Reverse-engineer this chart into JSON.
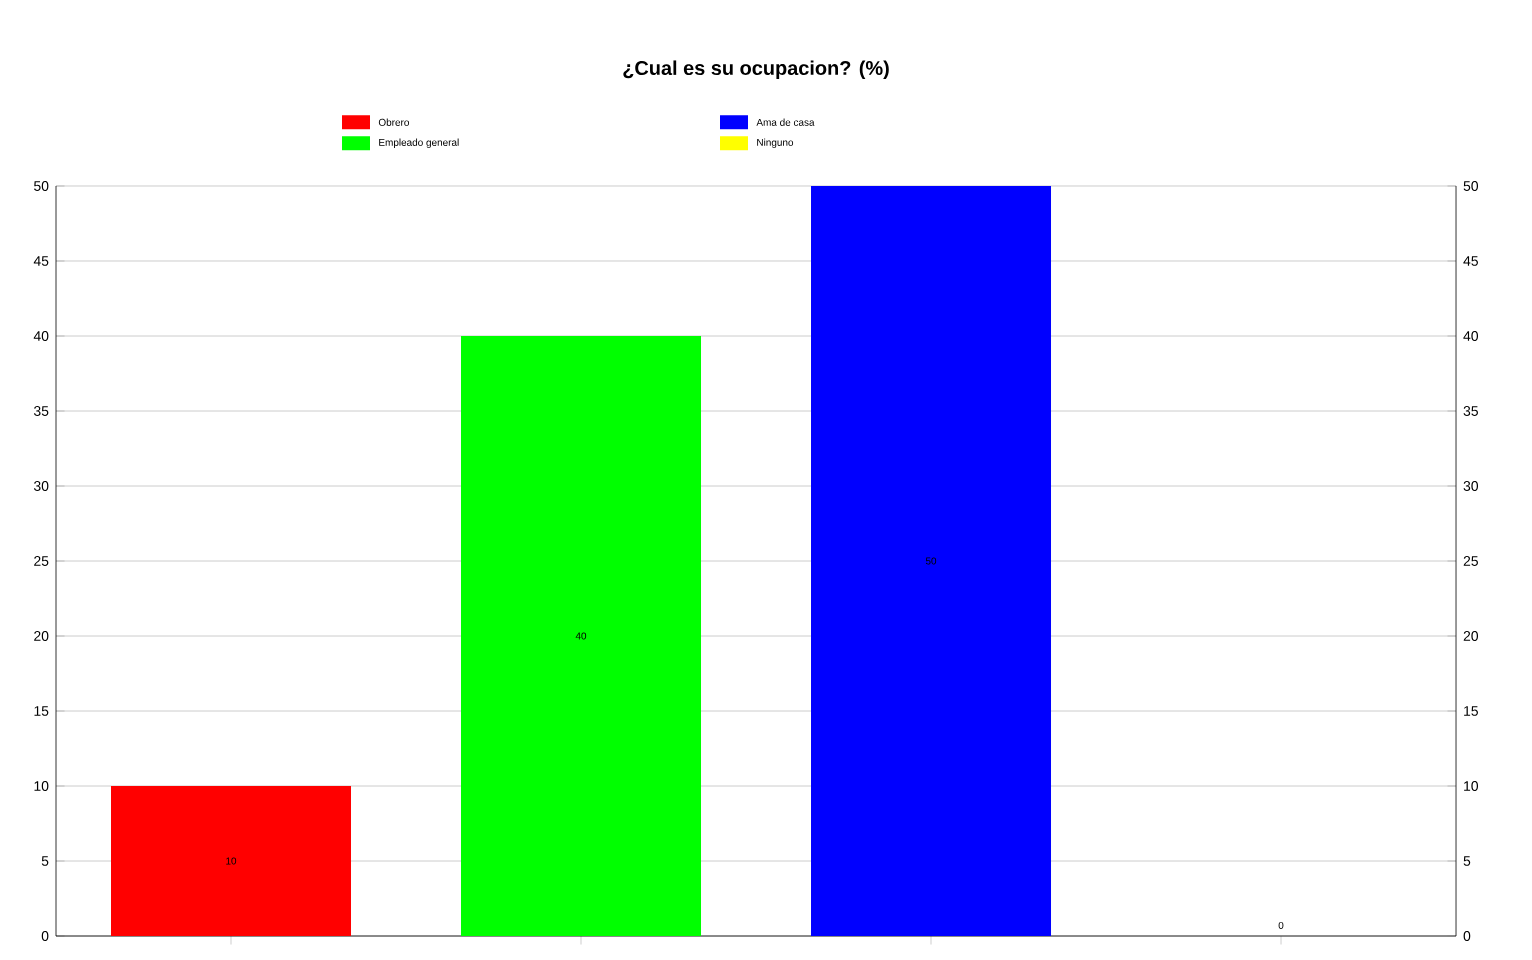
{
  "chart_data": {
    "type": "bar",
    "title": "¿Cual es su ocupacion? (%)",
    "categories": [
      null,
      null,
      null,
      null
    ],
    "series": [
      {
        "name": "Obrero",
        "color": "#ff0000",
        "values": [
          10,
          null,
          null,
          null
        ]
      },
      {
        "name": "Empleado general",
        "color": "#00ff00",
        "values": [
          null,
          40,
          null,
          null
        ]
      },
      {
        "name": "Ama de casa",
        "color": "#0000ff",
        "values": [
          null,
          null,
          50,
          null
        ]
      },
      {
        "name": "Ninguno",
        "color": "#ffff00",
        "values": [
          null,
          null,
          null,
          0
        ]
      }
    ],
    "ylim": [
      0,
      50
    ],
    "yticks": [
      0,
      5,
      10,
      15,
      20,
      25,
      30,
      35,
      40,
      45,
      50
    ],
    "y2lim": [
      0,
      50
    ],
    "y2ticks": [
      0,
      5,
      10,
      15,
      20,
      25,
      30,
      35,
      40,
      45,
      50
    ],
    "grid": "y",
    "legend": "top",
    "data_labels": true
  }
}
